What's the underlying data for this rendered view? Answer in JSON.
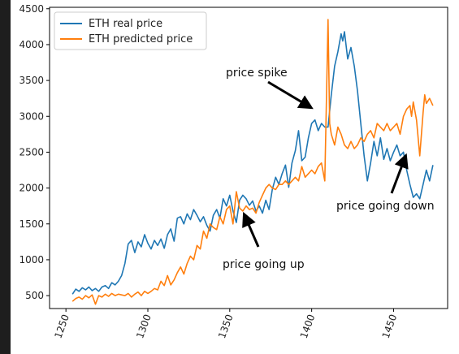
{
  "chart_data": {
    "type": "line",
    "title": "",
    "xlabel": "",
    "ylabel": "",
    "xlim": [
      1240,
      1483
    ],
    "ylim": [
      320,
      4520
    ],
    "x_ticks": [
      1250,
      1300,
      1350,
      1400,
      1450
    ],
    "y_ticks": [
      500,
      1000,
      1500,
      2000,
      2500,
      3000,
      3500,
      4000,
      4500
    ],
    "grid": false,
    "legend_position": "top-left",
    "series": [
      {
        "name": "ETH real price",
        "color": "#1f77b4",
        "x": [
          1254,
          1256,
          1258,
          1260,
          1262,
          1264,
          1266,
          1268,
          1270,
          1272,
          1274,
          1276,
          1278,
          1280,
          1282,
          1284,
          1286,
          1288,
          1290,
          1292,
          1294,
          1296,
          1298,
          1300,
          1302,
          1304,
          1306,
          1308,
          1310,
          1312,
          1314,
          1316,
          1318,
          1320,
          1322,
          1324,
          1326,
          1328,
          1330,
          1332,
          1334,
          1336,
          1338,
          1340,
          1342,
          1344,
          1346,
          1348,
          1350,
          1352,
          1354,
          1356,
          1358,
          1360,
          1362,
          1364,
          1366,
          1368,
          1370,
          1372,
          1374,
          1376,
          1378,
          1380,
          1382,
          1384,
          1386,
          1388,
          1390,
          1392,
          1394,
          1396,
          1398,
          1400,
          1402,
          1404,
          1406,
          1408,
          1410,
          1412,
          1414,
          1416,
          1418,
          1419,
          1420,
          1422,
          1424,
          1426,
          1428,
          1430,
          1432,
          1434,
          1436,
          1438,
          1440,
          1442,
          1444,
          1446,
          1448,
          1450,
          1452,
          1454,
          1456,
          1458,
          1460,
          1462,
          1464,
          1466,
          1468,
          1470,
          1472,
          1474
        ],
        "values": [
          520,
          590,
          560,
          610,
          580,
          620,
          570,
          600,
          560,
          620,
          640,
          600,
          680,
          650,
          700,
          780,
          950,
          1220,
          1270,
          1100,
          1250,
          1180,
          1350,
          1230,
          1150,
          1270,
          1200,
          1290,
          1160,
          1350,
          1430,
          1260,
          1580,
          1600,
          1500,
          1640,
          1560,
          1700,
          1620,
          1530,
          1600,
          1480,
          1400,
          1620,
          1700,
          1580,
          1850,
          1750,
          1900,
          1680,
          1520,
          1830,
          1900,
          1850,
          1760,
          1820,
          1680,
          1750,
          1650,
          1830,
          1700,
          1980,
          2150,
          2050,
          2200,
          2320,
          2010,
          2350,
          2520,
          2800,
          2380,
          2430,
          2700,
          2900,
          2950,
          2800,
          2900,
          2850,
          2850,
          3300,
          3700,
          3900,
          4150,
          4050,
          4180,
          3800,
          3960,
          3700,
          3350,
          2900,
          2450,
          2100,
          2350,
          2650,
          2450,
          2700,
          2400,
          2550,
          2380,
          2500,
          2600,
          2450,
          2500,
          2250,
          2050,
          1870,
          1920,
          1850,
          2050,
          2250,
          2100,
          2320
        ]
      },
      {
        "name": "ETH predicted price",
        "color": "#ff7f0e",
        "x": [
          1254,
          1256,
          1258,
          1260,
          1262,
          1264,
          1266,
          1268,
          1270,
          1272,
          1274,
          1276,
          1278,
          1280,
          1282,
          1284,
          1286,
          1288,
          1290,
          1292,
          1294,
          1296,
          1298,
          1300,
          1302,
          1304,
          1306,
          1308,
          1310,
          1312,
          1314,
          1316,
          1318,
          1320,
          1322,
          1324,
          1326,
          1328,
          1330,
          1332,
          1334,
          1336,
          1338,
          1340,
          1342,
          1344,
          1346,
          1348,
          1350,
          1352,
          1354,
          1356,
          1358,
          1360,
          1362,
          1364,
          1366,
          1368,
          1370,
          1372,
          1374,
          1376,
          1378,
          1380,
          1382,
          1384,
          1386,
          1388,
          1390,
          1392,
          1394,
          1396,
          1398,
          1400,
          1402,
          1404,
          1406,
          1408,
          1410,
          1411,
          1412,
          1414,
          1416,
          1418,
          1420,
          1422,
          1424,
          1426,
          1428,
          1430,
          1432,
          1434,
          1436,
          1438,
          1440,
          1442,
          1444,
          1446,
          1448,
          1450,
          1452,
          1454,
          1456,
          1458,
          1460,
          1461,
          1462,
          1464,
          1466,
          1468,
          1469,
          1470,
          1472,
          1474
        ],
        "values": [
          420,
          460,
          480,
          450,
          500,
          470,
          510,
          380,
          500,
          480,
          520,
          490,
          530,
          500,
          520,
          510,
          500,
          530,
          480,
          520,
          550,
          500,
          560,
          530,
          560,
          600,
          580,
          700,
          640,
          780,
          650,
          720,
          820,
          900,
          800,
          950,
          1050,
          1000,
          1200,
          1150,
          1400,
          1300,
          1500,
          1450,
          1420,
          1600,
          1500,
          1700,
          1750,
          1500,
          1950,
          1720,
          1680,
          1750,
          1700,
          1720,
          1650,
          1800,
          1900,
          2000,
          2050,
          2000,
          1980,
          2050,
          2050,
          2100,
          2050,
          2100,
          2150,
          2100,
          2300,
          2150,
          2200,
          2250,
          2200,
          2300,
          2350,
          2100,
          4350,
          2900,
          2750,
          2600,
          2850,
          2750,
          2600,
          2550,
          2650,
          2550,
          2600,
          2700,
          2650,
          2750,
          2800,
          2700,
          2900,
          2850,
          2800,
          2900,
          2800,
          2850,
          2900,
          2750,
          3000,
          3100,
          3150,
          3000,
          3200,
          2950,
          2450,
          3050,
          3300,
          3180,
          3250,
          3150
        ]
      }
    ],
    "annotations": [
      {
        "text": "price spike"
      },
      {
        "text": "price going up"
      },
      {
        "text": "price going down"
      }
    ]
  }
}
